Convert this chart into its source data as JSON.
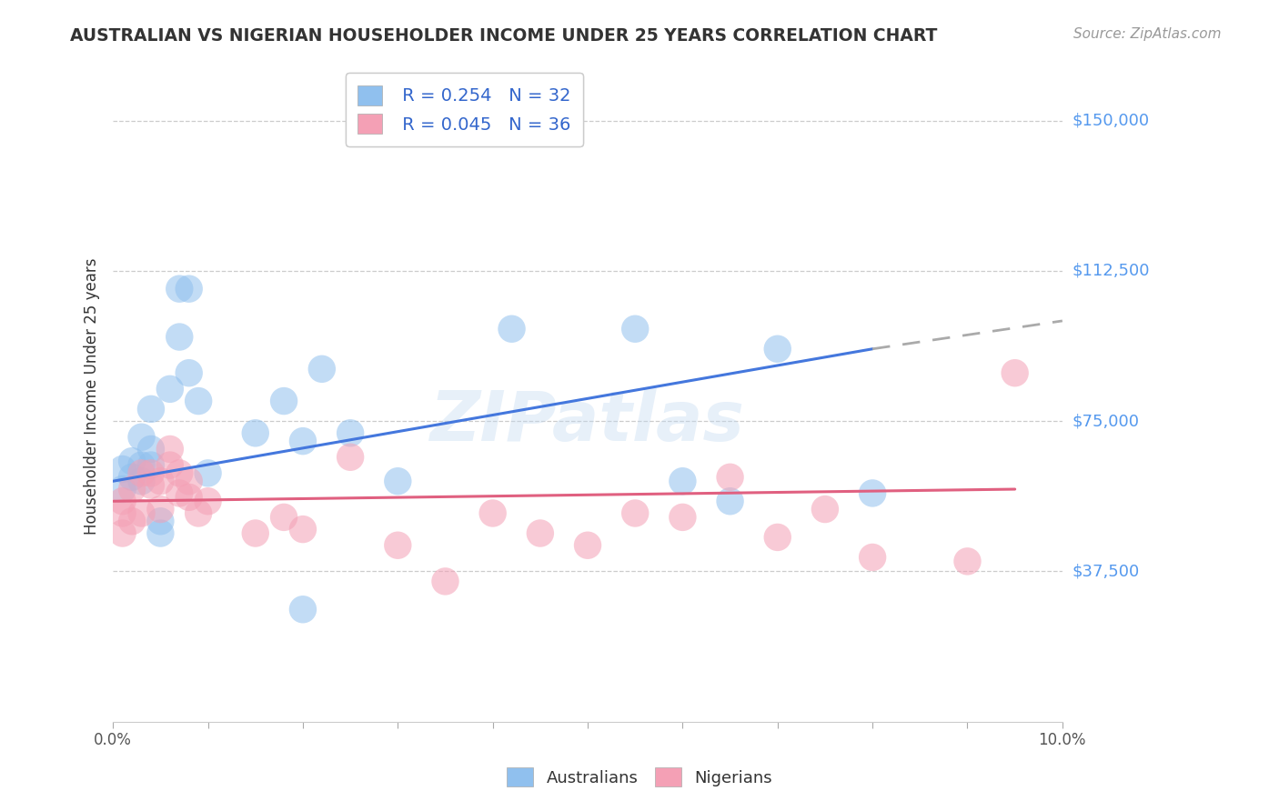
{
  "title": "AUSTRALIAN VS NIGERIAN HOUSEHOLDER INCOME UNDER 25 YEARS CORRELATION CHART",
  "source": "Source: ZipAtlas.com",
  "ylabel": "Householder Income Under 25 years",
  "xlim": [
    0.0,
    0.1
  ],
  "ylim": [
    0,
    162500
  ],
  "yticks": [
    37500,
    75000,
    112500,
    150000
  ],
  "ytick_labels": [
    "$37,500",
    "$75,000",
    "$112,500",
    "$150,000"
  ],
  "legend_blue_r": "R = 0.254",
  "legend_blue_n": "N = 32",
  "legend_pink_r": "R = 0.045",
  "legend_pink_n": "N = 36",
  "aus_color": "#90C0EE",
  "nig_color": "#F4A0B5",
  "aus_line_color": "#4477DD",
  "nig_line_color": "#E06080",
  "background_color": "#FFFFFF",
  "grid_color": "#CCCCCC",
  "axis_label_color": "#5599EE",
  "title_color": "#333333",
  "aus_x": [
    0.001,
    0.001,
    0.002,
    0.002,
    0.003,
    0.003,
    0.003,
    0.004,
    0.004,
    0.004,
    0.005,
    0.005,
    0.006,
    0.007,
    0.007,
    0.008,
    0.008,
    0.009,
    0.01,
    0.015,
    0.018,
    0.02,
    0.022,
    0.025,
    0.03,
    0.042,
    0.055,
    0.06,
    0.065,
    0.07,
    0.08,
    0.02
  ],
  "aus_y": [
    63000,
    58000,
    65000,
    61000,
    64000,
    71000,
    60000,
    78000,
    68000,
    64000,
    50000,
    47000,
    83000,
    108000,
    96000,
    108000,
    87000,
    80000,
    62000,
    72000,
    80000,
    70000,
    88000,
    72000,
    60000,
    98000,
    98000,
    60000,
    55000,
    93000,
    57000,
    28000
  ],
  "nig_x": [
    0.001,
    0.001,
    0.001,
    0.002,
    0.002,
    0.003,
    0.003,
    0.004,
    0.004,
    0.005,
    0.005,
    0.006,
    0.006,
    0.007,
    0.007,
    0.008,
    0.008,
    0.009,
    0.01,
    0.015,
    0.018,
    0.02,
    0.025,
    0.03,
    0.035,
    0.04,
    0.045,
    0.05,
    0.055,
    0.06,
    0.065,
    0.07,
    0.075,
    0.08,
    0.09,
    0.095
  ],
  "nig_y": [
    55000,
    52000,
    47000,
    50000,
    58000,
    62000,
    52000,
    59000,
    62000,
    60000,
    53000,
    68000,
    64000,
    62000,
    57000,
    56000,
    60000,
    52000,
    55000,
    47000,
    51000,
    48000,
    66000,
    44000,
    35000,
    52000,
    47000,
    44000,
    52000,
    51000,
    61000,
    46000,
    53000,
    41000,
    40000,
    87000
  ],
  "aus_line_x0": 0.0,
  "aus_line_y0": 60000,
  "aus_line_x1": 0.08,
  "aus_line_y1": 93000,
  "aus_line_dash_x1": 0.1,
  "aus_line_dash_y1": 100000,
  "nig_line_x0": 0.0,
  "nig_line_y0": 55000,
  "nig_line_x1": 0.095,
  "nig_line_y1": 58000
}
